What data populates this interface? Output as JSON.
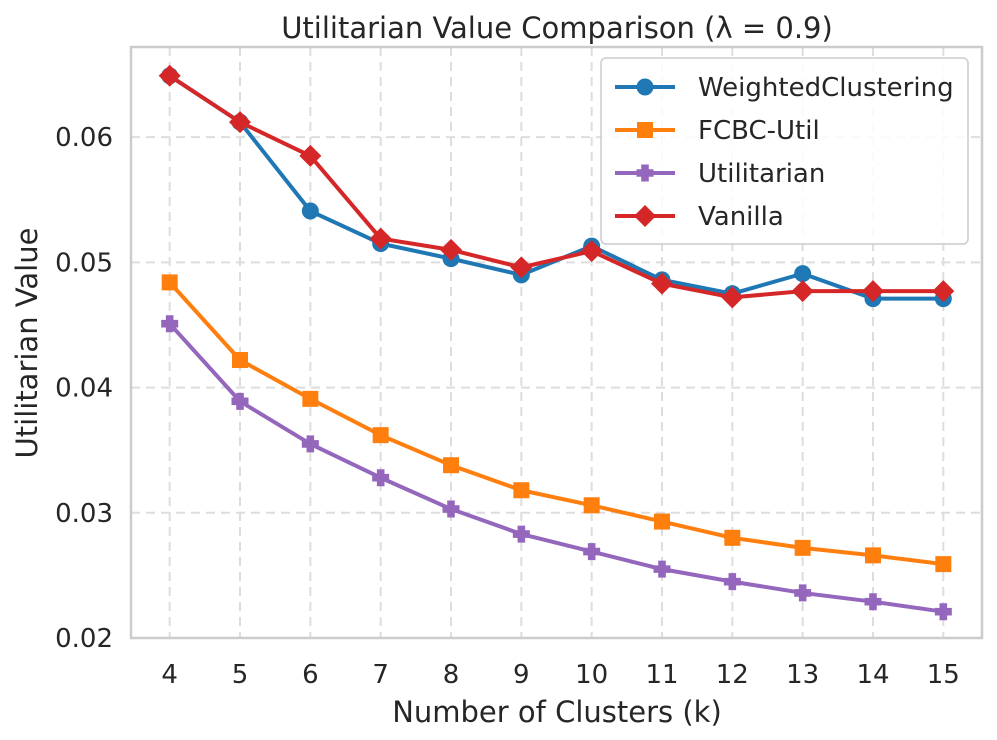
{
  "chart_data": {
    "type": "line",
    "title": "Utilitarian Value Comparison (λ = 0.9)",
    "xlabel": "Number of Clusters (k)",
    "ylabel": "Utilitarian Value",
    "x": [
      4,
      5,
      6,
      7,
      8,
      9,
      10,
      11,
      12,
      13,
      14,
      15
    ],
    "xlim": [
      3.45,
      15.55
    ],
    "ylim": [
      0.02,
      0.0672
    ],
    "yticks": [
      0.02,
      0.03,
      0.04,
      0.05,
      0.06
    ],
    "ytick_labels": [
      "0.02",
      "0.03",
      "0.04",
      "0.05",
      "0.06"
    ],
    "grid": true,
    "legend_position": "top-right",
    "series": [
      {
        "name": "WeightedClustering",
        "color": "#1f77b4",
        "marker": "circle",
        "values": [
          0.0649,
          0.0612,
          0.0541,
          0.0515,
          0.0503,
          0.049,
          0.0513,
          0.0486,
          0.0475,
          0.0491,
          0.0471,
          0.0471
        ]
      },
      {
        "name": "FCBC-Util",
        "color": "#ff7f0e",
        "marker": "square",
        "values": [
          0.0484,
          0.0422,
          0.0391,
          0.0362,
          0.0338,
          0.0318,
          0.0306,
          0.0293,
          0.028,
          0.0272,
          0.0266,
          0.0259
        ]
      },
      {
        "name": "Utilitarian",
        "color": "#9467bd",
        "marker": "plus",
        "values": [
          0.0451,
          0.0389,
          0.0355,
          0.0328,
          0.0303,
          0.0283,
          0.0269,
          0.0255,
          0.0245,
          0.0236,
          0.0229,
          0.0221
        ]
      },
      {
        "name": "Vanilla",
        "color": "#d62728",
        "marker": "diamond",
        "values": [
          0.0649,
          0.0612,
          0.0585,
          0.0519,
          0.051,
          0.0496,
          0.0509,
          0.0483,
          0.0472,
          0.0477,
          0.0477,
          0.0477
        ]
      }
    ]
  }
}
